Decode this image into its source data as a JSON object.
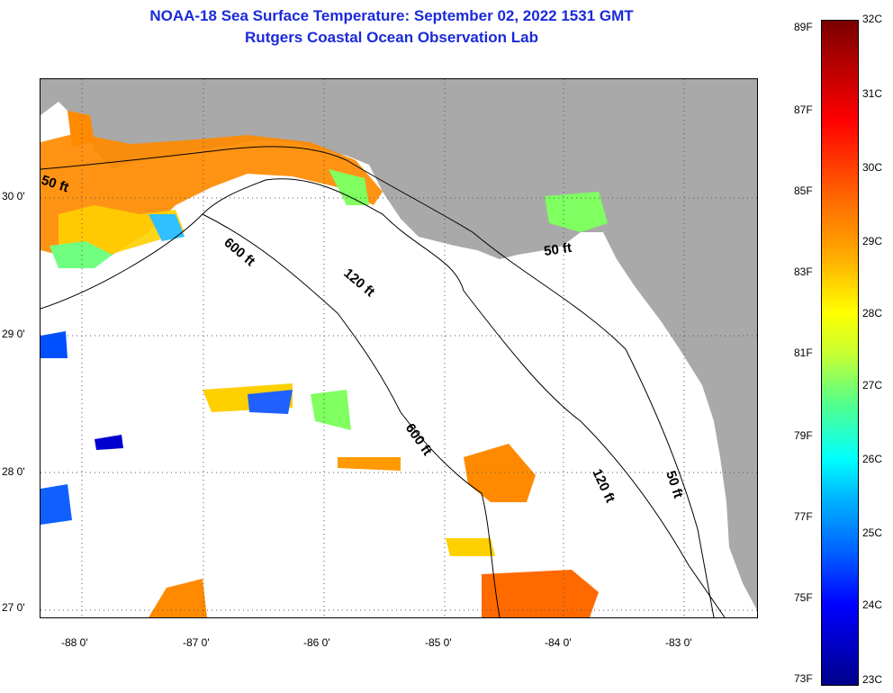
{
  "header": {
    "title": "NOAA-18 Sea Surface Temperature:  September 02, 2022 1531 GMT",
    "subtitle": "Rutgers Coastal Ocean Observation Lab"
  },
  "map": {
    "region": "Northeastern Gulf of Mexico / Florida Big Bend",
    "lat_labels": [
      "30 0'",
      "29 0'",
      "28 0'",
      "27 0'"
    ],
    "lon_labels": [
      "-88 0'",
      "-87 0'",
      "-86 0'",
      "-85 0'",
      "-84 0'",
      "-83 0'"
    ],
    "contour_labels": [
      "50 ft",
      "600 ft",
      "120 ft",
      "50 ft",
      "600 ft",
      "120 ft",
      "50 ft"
    ],
    "colors": {
      "land": "#a9a9a9",
      "water_no_data": "#ffffff",
      "title": "#1a2ad8"
    }
  },
  "colorbar": {
    "fahrenheit": [
      "89F",
      "87F",
      "85F",
      "83F",
      "81F",
      "79F",
      "77F",
      "75F",
      "73F"
    ],
    "celsius": [
      "32C",
      "31C",
      "30C",
      "29C",
      "28C",
      "27C",
      "26C",
      "25C",
      "24C",
      "23C"
    ]
  }
}
